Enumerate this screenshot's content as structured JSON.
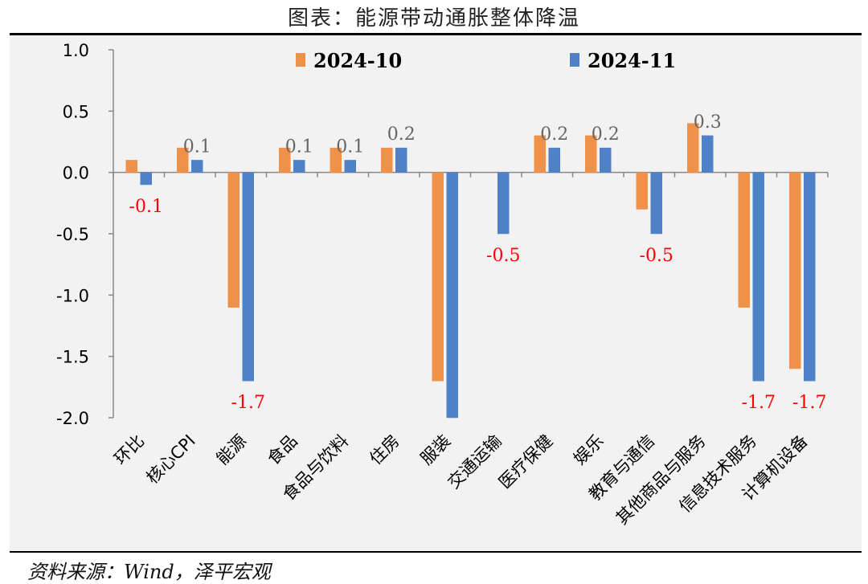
{
  "title": "图表：能源带动通胀整体降温",
  "source": "资料来源：Wind，泽平宏观",
  "chart_data": {
    "type": "bar",
    "categories": [
      "环比",
      "核心CPI",
      "能源",
      "食品",
      "食品与饮料",
      "住房",
      "服装",
      "交通运输",
      "医疗保健",
      "娱乐",
      "教育与通信",
      "其他商品与服务",
      "信息技术服务",
      "计算机设备"
    ],
    "series": [
      {
        "name": "2024-10",
        "color": "#f0914a",
        "values": [
          0.1,
          0.2,
          -1.1,
          0.2,
          0.2,
          0.2,
          -1.7,
          0.0,
          0.3,
          0.3,
          -0.3,
          0.4,
          -1.1,
          -1.6
        ]
      },
      {
        "name": "2024-11",
        "color": "#4f81c7",
        "values": [
          -0.1,
          0.1,
          -1.7,
          0.1,
          0.1,
          0.2,
          -2.0,
          -0.5,
          0.2,
          0.2,
          -0.5,
          0.3,
          -1.7,
          -1.7
        ]
      }
    ],
    "data_labels": [
      "-0.1",
      "0.1",
      "-1.7",
      "0.1",
      "0.1",
      "0.2",
      "",
      "-0.5",
      "0.2",
      "0.2",
      "-0.5",
      "0.3",
      "-1.7",
      "-1.7"
    ],
    "positive_label_color": "#666666",
    "negative_label_color": "#ff0000",
    "ylim": [
      -2.0,
      1.0
    ],
    "yticks": [
      "1.0",
      "0.5",
      "0.0",
      "-0.5",
      "-1.0",
      "-1.5",
      "-2.0"
    ],
    "ytick_values": [
      1.0,
      0.5,
      0.0,
      -0.5,
      -1.0,
      -1.5,
      -2.0
    ],
    "legend_position": "top",
    "grid": false
  }
}
